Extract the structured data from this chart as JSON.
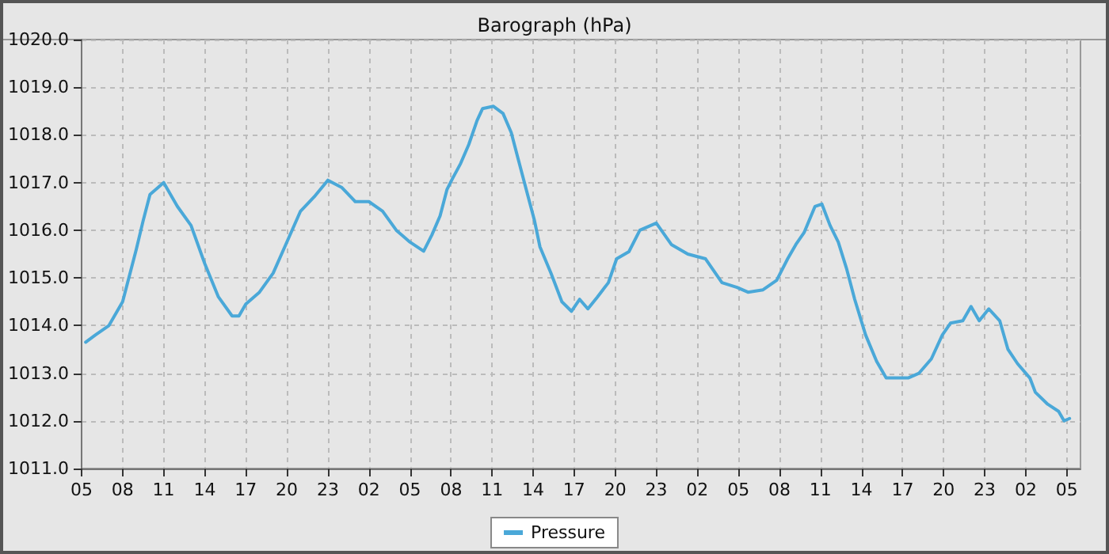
{
  "chart_data": {
    "type": "line",
    "title": "Barograph (hPa)",
    "legend": "bottom",
    "grid": true,
    "marker": "none",
    "line_style": "solid",
    "xlim": [
      "--01-01T05:00",
      "--01-04T06:00"
    ],
    "xticks": [
      {
        "value": "--01-01T05:00",
        "label": "05"
      },
      {
        "value": "--01-01T08:00",
        "label": "08"
      },
      {
        "value": "--01-01T11:00",
        "label": "11"
      },
      {
        "value": "--01-01T14:00",
        "label": "14"
      },
      {
        "value": "--01-01T17:00",
        "label": "17"
      },
      {
        "value": "--01-01T20:00",
        "label": "20"
      },
      {
        "value": "--01-01T23:00",
        "label": "23"
      },
      {
        "value": "--01-02T02:00",
        "label": "02"
      },
      {
        "value": "--01-02T05:00",
        "label": "05"
      },
      {
        "value": "--01-02T08:00",
        "label": "08"
      },
      {
        "value": "--01-02T11:00",
        "label": "11"
      },
      {
        "value": "--01-02T14:00",
        "label": "14"
      },
      {
        "value": "--01-02T17:00",
        "label": "17"
      },
      {
        "value": "--01-02T20:00",
        "label": "20"
      },
      {
        "value": "--01-02T23:00",
        "label": "23"
      },
      {
        "value": "--01-03T02:00",
        "label": "02"
      },
      {
        "value": "--01-03T05:00",
        "label": "05"
      },
      {
        "value": "--01-03T08:00",
        "label": "08"
      },
      {
        "value": "--01-03T11:00",
        "label": "11"
      },
      {
        "value": "--01-03T14:00",
        "label": "14"
      },
      {
        "value": "--01-03T17:00",
        "label": "17"
      },
      {
        "value": "--01-03T20:00",
        "label": "20"
      },
      {
        "value": "--01-03T23:00",
        "label": "23"
      },
      {
        "value": "--01-04T02:00",
        "label": "02"
      },
      {
        "value": "--01-04T05:00",
        "label": "05"
      }
    ],
    "ylim": [
      1011,
      1020
    ],
    "yticks": [
      {
        "value": 1011,
        "label": "1011.0"
      },
      {
        "value": 1012,
        "label": "1012.0"
      },
      {
        "value": 1013,
        "label": "1013.0"
      },
      {
        "value": 1014,
        "label": "1014.0"
      },
      {
        "value": 1015,
        "label": "1015.0"
      },
      {
        "value": 1016,
        "label": "1016.0"
      },
      {
        "value": 1017,
        "label": "1017.0"
      },
      {
        "value": 1018,
        "label": "1018.0"
      },
      {
        "value": 1019,
        "label": "1019.0"
      },
      {
        "value": 1020,
        "label": "1020.0"
      }
    ],
    "x": [
      "--01-01T05:18",
      "--01-01T06:00",
      "--01-01T07:00",
      "--01-01T08:00",
      "--01-01T09:00",
      "--01-01T09:30",
      "--01-01T10:00",
      "--01-01T11:00",
      "--01-01T12:00",
      "--01-01T13:00",
      "--01-01T14:00",
      "--01-01T15:00",
      "--01-01T16:00",
      "--01-01T16:30",
      "--01-01T17:00",
      "--01-01T18:00",
      "--01-01T19:00",
      "--01-01T20:00",
      "--01-01T21:00",
      "--01-01T22:00",
      "--01-01T23:00",
      "--01-02T00:00",
      "--01-02T01:00",
      "--01-02T02:00",
      "--01-02T03:00",
      "--01-02T04:00",
      "--01-02T05:00",
      "--01-02T06:00",
      "--01-02T06:36",
      "--01-02T07:12",
      "--01-02T07:42",
      "--01-02T08:06",
      "--01-02T08:42",
      "--01-02T09:18",
      "--01-02T09:54",
      "--01-02T10:18",
      "--01-02T11:06",
      "--01-02T11:48",
      "--01-02T12:24",
      "--01-02T12:54",
      "--01-02T13:30",
      "--01-02T14:06",
      "--01-02T14:30",
      "--01-02T15:18",
      "--01-02T16:06",
      "--01-02T16:48",
      "--01-02T17:24",
      "--01-02T18:00",
      "--01-02T18:42",
      "--01-02T19:30",
      "--01-02T20:06",
      "--01-02T21:00",
      "--01-02T21:48",
      "--01-02T23:00",
      "--01-03T00:06",
      "--01-03T01:18",
      "--01-03T02:36",
      "--01-03T03:48",
      "--01-03T04:54",
      "--01-03T05:42",
      "--01-03T06:48",
      "--01-03T07:48",
      "--01-03T08:36",
      "--01-03T09:12",
      "--01-03T09:48",
      "--01-03T10:36",
      "--01-03T11:06",
      "--01-03T11:42",
      "--01-03T12:18",
      "--01-03T12:54",
      "--01-03T13:30",
      "--01-03T14:18",
      "--01-03T15:06",
      "--01-03T15:48",
      "--01-03T16:36",
      "--01-03T17:24",
      "--01-03T18:12",
      "--01-03T19:06",
      "--01-03T19:54",
      "--01-03T20:30",
      "--01-03T21:24",
      "--01-03T22:00",
      "--01-03T22:36",
      "--01-03T23:18",
      "--01-04T00:06",
      "--01-04T00:42",
      "--01-04T01:24",
      "--01-04T02:18",
      "--01-04T02:42",
      "--01-04T03:36",
      "--01-04T04:24",
      "--01-04T04:48",
      "--01-04T05:12"
    ],
    "series": [
      {
        "name": "Pressure",
        "color": "#4aa8d8",
        "values": [
          1013.65,
          1013.8,
          1014.0,
          1014.5,
          1015.6,
          1016.2,
          1016.75,
          1017.0,
          1016.5,
          1016.1,
          1015.3,
          1014.6,
          1014.2,
          1014.2,
          1014.45,
          1014.7,
          1015.1,
          1015.75,
          1016.4,
          1016.7,
          1017.05,
          1016.9,
          1016.6,
          1016.6,
          1016.4,
          1016.0,
          1015.75,
          1015.56,
          1015.9,
          1016.3,
          1016.85,
          1017.08,
          1017.4,
          1017.8,
          1018.3,
          1018.55,
          1018.6,
          1018.45,
          1018.05,
          1017.5,
          1016.85,
          1016.2,
          1015.65,
          1015.1,
          1014.5,
          1014.3,
          1014.55,
          1014.35,
          1014.6,
          1014.9,
          1015.4,
          1015.55,
          1016.0,
          1016.15,
          1015.7,
          1015.5,
          1015.4,
          1014.9,
          1014.8,
          1014.7,
          1014.75,
          1014.95,
          1015.4,
          1015.7,
          1015.95,
          1016.5,
          1016.55,
          1016.1,
          1015.75,
          1015.2,
          1014.55,
          1013.8,
          1013.25,
          1012.9,
          1012.9,
          1012.9,
          1013.0,
          1013.3,
          1013.8,
          1014.05,
          1014.1,
          1014.4,
          1014.1,
          1014.35,
          1014.1,
          1013.5,
          1013.2,
          1012.9,
          1012.6,
          1012.35,
          1012.2,
          1012.0,
          1012.05
        ]
      }
    ]
  }
}
